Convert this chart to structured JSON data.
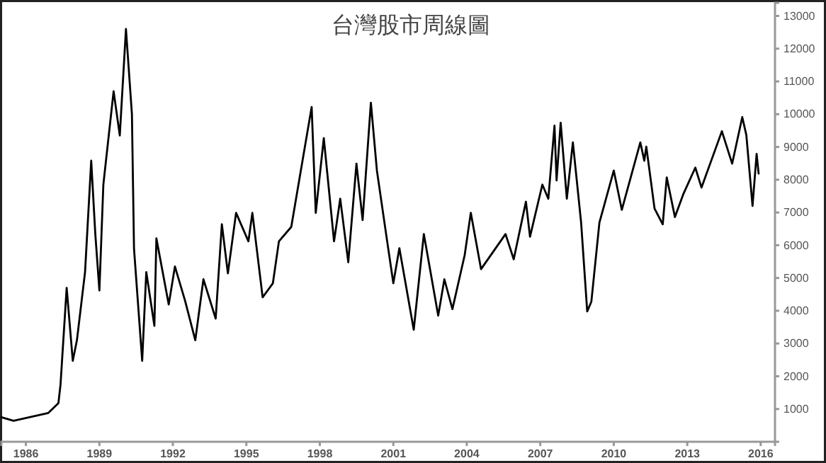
{
  "chart_data": {
    "type": "line",
    "title": "台灣股市周線圖",
    "x": [
      "1985-01",
      "1985-07",
      "1986-12",
      "1987-05",
      "1987-06",
      "1987-09",
      "1987-12",
      "1988-02",
      "1988-06",
      "1988-09",
      "1988-11",
      "1989-01",
      "1989-03",
      "1989-08",
      "1989-11",
      "1990-02",
      "1990-05",
      "1990-06",
      "1990-10",
      "1990-12",
      "1991-04",
      "1991-05",
      "1991-11",
      "1992-02",
      "1992-07",
      "1992-12",
      "1993-04",
      "1993-10",
      "1994-01",
      "1994-04",
      "1994-08",
      "1995-02",
      "1995-04",
      "1995-09",
      "1996-02",
      "1996-05",
      "1996-11",
      "1997-09",
      "1997-11",
      "1998-03",
      "1998-08",
      "1998-11",
      "1999-03",
      "1999-07",
      "1999-10",
      "2000-02",
      "2000-05",
      "2000-10",
      "2001-01",
      "2001-04",
      "2001-11",
      "2002-04",
      "2002-11",
      "2003-02",
      "2003-06",
      "2003-12",
      "2004-03",
      "2004-08",
      "2005-08",
      "2005-12",
      "2006-06",
      "2006-08",
      "2007-02",
      "2007-05",
      "2007-08",
      "2007-09",
      "2007-11",
      "2008-02",
      "2008-05",
      "2008-09",
      "2008-12",
      "2009-02",
      "2009-06",
      "2010-01",
      "2010-05",
      "2011-02",
      "2011-04",
      "2011-05",
      "2011-09",
      "2012-01",
      "2012-03",
      "2012-07",
      "2012-11",
      "2013-05",
      "2013-08",
      "2014-06",
      "2014-11",
      "2015-04",
      "2015-06",
      "2015-09",
      "2015-11",
      "2015-12"
    ],
    "series": [
      {
        "color": "#000000",
        "values": [
          750,
          640,
          880,
          1180,
          1740,
          4700,
          2470,
          3100,
          5180,
          8580,
          6340,
          4620,
          7850,
          10700,
          9350,
          12600,
          10000,
          5900,
          2470,
          5180,
          3540,
          6210,
          4190,
          5350,
          4310,
          3100,
          4960,
          3760,
          6640,
          5140,
          6990,
          6120,
          6990,
          4410,
          4840,
          6120,
          6560,
          10220,
          6990,
          9270,
          6120,
          7420,
          5480,
          8490,
          6770,
          10350,
          8280,
          6120,
          4840,
          5910,
          3420,
          6340,
          3850,
          4960,
          4050,
          5700,
          6990,
          5270,
          6340,
          5570,
          7330,
          6260,
          7850,
          7420,
          9650,
          7980,
          9740,
          7420,
          9140,
          6690,
          3980,
          4280,
          6690,
          8280,
          7080,
          9140,
          8580,
          9010,
          7120,
          6640,
          8070,
          6860,
          7550,
          8370,
          7760,
          9480,
          8490,
          9910,
          9360,
          7200,
          8790,
          8190
        ]
      }
    ],
    "xlim": [
      "1985-01",
      "2016-08"
    ],
    "xticks": [
      {
        "value": "1986-01",
        "label": "1986"
      },
      {
        "value": "1989-01",
        "label": "1989"
      },
      {
        "value": "1992-01",
        "label": "1992"
      },
      {
        "value": "1995-01",
        "label": "1995"
      },
      {
        "value": "1998-01",
        "label": "1998"
      },
      {
        "value": "2001-01",
        "label": "2001"
      },
      {
        "value": "2004-01",
        "label": "2004"
      },
      {
        "value": "2007-01",
        "label": "2007"
      },
      {
        "value": "2010-01",
        "label": "2010"
      },
      {
        "value": "2013-01",
        "label": "2013"
      },
      {
        "value": "2016-01",
        "label": "2016"
      }
    ],
    "ylim": [
      0,
      13400
    ],
    "yticks": [
      1000,
      2000,
      3000,
      4000,
      5000,
      6000,
      7000,
      8000,
      9000,
      10000,
      11000,
      12000,
      13000
    ],
    "marker": "none",
    "line_style": "solid"
  }
}
